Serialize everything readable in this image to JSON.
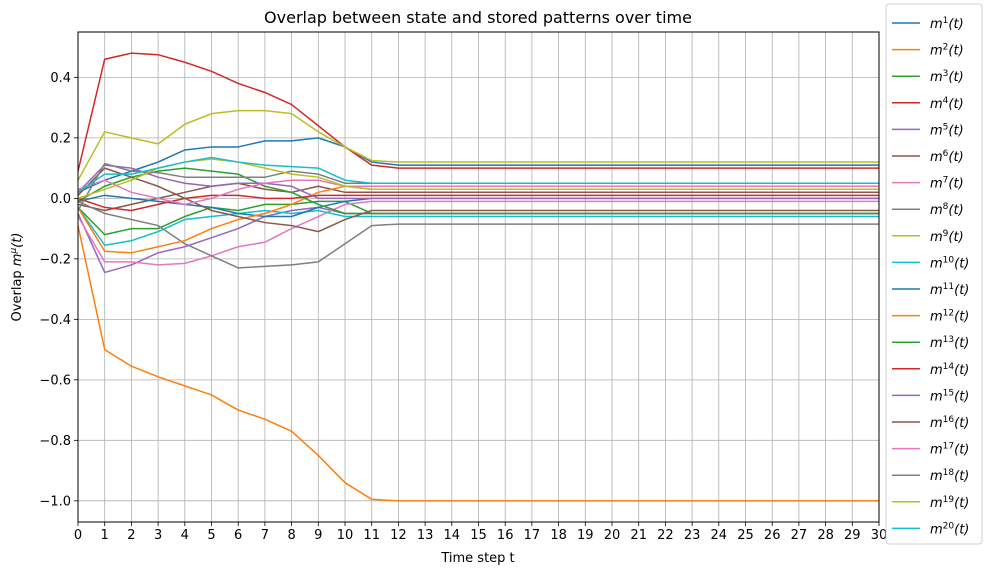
{
  "chart_data": {
    "type": "line",
    "title": "Overlap between state and stored patterns over time",
    "xlabel": "Time step t",
    "ylabel_prefix": "Overlap ",
    "ylabel_symbol": "m",
    "ylabel_sup": "μ",
    "ylabel_suffix": "(t)",
    "xlim": [
      0,
      30
    ],
    "ylim": [
      -1.07,
      0.55
    ],
    "xticks": [
      0,
      1,
      2,
      3,
      4,
      5,
      6,
      7,
      8,
      9,
      10,
      11,
      12,
      13,
      14,
      15,
      16,
      17,
      18,
      19,
      20,
      21,
      22,
      23,
      24,
      25,
      26,
      27,
      28,
      29,
      30
    ],
    "yticks": [
      -1.0,
      -0.8,
      -0.6,
      -0.4,
      -0.2,
      0.0,
      0.2,
      0.4
    ],
    "ytick_labels": [
      "−1.0",
      "−0.8",
      "−0.6",
      "−0.4",
      "−0.2",
      "0.0",
      "0.2",
      "0.4"
    ],
    "grid": true,
    "legend_placement": "outside-right",
    "x": [
      0,
      1,
      2,
      3,
      4,
      5,
      6,
      7,
      8,
      9,
      10,
      11,
      12,
      13,
      14,
      15,
      16,
      17,
      18,
      19,
      20,
      21,
      22,
      23,
      24,
      25,
      26,
      27,
      28,
      29,
      30
    ],
    "series": [
      {
        "name": "m",
        "sup": "1",
        "suffix": "(t)",
        "color": "#1f77b4",
        "values": [
          0.02,
          0.06,
          0.09,
          0.12,
          0.16,
          0.17,
          0.17,
          0.19,
          0.19,
          0.2,
          0.17,
          0.12,
          0.11,
          0.11,
          0.11,
          0.11,
          0.11,
          0.11,
          0.11,
          0.11,
          0.11,
          0.11,
          0.11,
          0.11,
          0.11,
          0.11,
          0.11,
          0.11,
          0.11,
          0.11,
          0.11
        ]
      },
      {
        "name": "m",
        "sup": "2",
        "suffix": "(t)",
        "color": "#ff7f0e",
        "values": [
          -0.09,
          -0.5,
          -0.555,
          -0.59,
          -0.62,
          -0.65,
          -0.7,
          -0.73,
          -0.77,
          -0.85,
          -0.94,
          -0.995,
          -1.0,
          -1.0,
          -1.0,
          -1.0,
          -1.0,
          -1.0,
          -1.0,
          -1.0,
          -1.0,
          -1.0,
          -1.0,
          -1.0,
          -1.0,
          -1.0,
          -1.0,
          -1.0,
          -1.0,
          -1.0,
          -1.0
        ]
      },
      {
        "name": "m",
        "sup": "3",
        "suffix": "(t)",
        "color": "#2ca02c",
        "values": [
          -0.03,
          -0.12,
          -0.1,
          -0.1,
          -0.06,
          -0.03,
          -0.04,
          -0.02,
          -0.02,
          -0.01,
          -0.01,
          -0.05,
          -0.05,
          -0.05,
          -0.05,
          -0.05,
          -0.05,
          -0.05,
          -0.05,
          -0.05,
          -0.05,
          -0.05,
          -0.05,
          -0.05,
          -0.05,
          -0.05,
          -0.05,
          -0.05,
          -0.05,
          -0.05,
          -0.05
        ]
      },
      {
        "name": "m",
        "sup": "4",
        "suffix": "(t)",
        "color": "#d62728",
        "values": [
          0.09,
          0.46,
          0.48,
          0.475,
          0.45,
          0.42,
          0.38,
          0.35,
          0.31,
          0.24,
          0.17,
          0.11,
          0.1,
          0.1,
          0.1,
          0.1,
          0.1,
          0.1,
          0.1,
          0.1,
          0.1,
          0.1,
          0.1,
          0.1,
          0.1,
          0.1,
          0.1,
          0.1,
          0.1,
          0.1,
          0.1
        ]
      },
      {
        "name": "m",
        "sup": "5",
        "suffix": "(t)",
        "color": "#9467bd",
        "values": [
          -0.05,
          -0.245,
          -0.22,
          -0.18,
          -0.16,
          -0.13,
          -0.1,
          -0.06,
          -0.04,
          -0.03,
          -0.05,
          -0.05,
          -0.05,
          -0.05,
          -0.05,
          -0.05,
          -0.05,
          -0.05,
          -0.05,
          -0.05,
          -0.05,
          -0.05,
          -0.05,
          -0.05,
          -0.05,
          -0.05,
          -0.05,
          -0.05,
          -0.05,
          -0.05,
          -0.05
        ]
      },
      {
        "name": "m",
        "sup": "6",
        "suffix": "(t)",
        "color": "#8c564b",
        "values": [
          -0.02,
          -0.04,
          -0.02,
          0.0,
          0.02,
          0.04,
          0.05,
          0.03,
          0.02,
          0.04,
          0.02,
          0.02,
          0.02,
          0.02,
          0.02,
          0.02,
          0.02,
          0.02,
          0.02,
          0.02,
          0.02,
          0.02,
          0.02,
          0.02,
          0.02,
          0.02,
          0.02,
          0.02,
          0.02,
          0.02,
          0.02
        ]
      },
      {
        "name": "m",
        "sup": "7",
        "suffix": "(t)",
        "color": "#e377c2",
        "values": [
          -0.06,
          -0.21,
          -0.21,
          -0.22,
          -0.215,
          -0.19,
          -0.16,
          -0.145,
          -0.1,
          -0.06,
          -0.02,
          -0.01,
          -0.01,
          -0.01,
          -0.01,
          -0.01,
          -0.01,
          -0.01,
          -0.01,
          -0.01,
          -0.01,
          -0.01,
          -0.01,
          -0.01,
          -0.01,
          -0.01,
          -0.01,
          -0.01,
          -0.01,
          -0.01,
          -0.01
        ]
      },
      {
        "name": "m",
        "sup": "8",
        "suffix": "(t)",
        "color": "#7f7f7f",
        "values": [
          -0.01,
          -0.05,
          -0.07,
          -0.09,
          -0.15,
          -0.19,
          -0.23,
          -0.225,
          -0.22,
          -0.21,
          -0.15,
          -0.09,
          -0.085,
          -0.085,
          -0.085,
          -0.085,
          -0.085,
          -0.085,
          -0.085,
          -0.085,
          -0.085,
          -0.085,
          -0.085,
          -0.085,
          -0.085,
          -0.085,
          -0.085,
          -0.085,
          -0.085,
          -0.085,
          -0.085
        ]
      },
      {
        "name": "m",
        "sup": "9",
        "suffix": "(t)",
        "color": "#bcbd22",
        "values": [
          0.06,
          0.22,
          0.2,
          0.18,
          0.245,
          0.28,
          0.29,
          0.29,
          0.28,
          0.22,
          0.17,
          0.125,
          0.12,
          0.12,
          0.12,
          0.12,
          0.12,
          0.12,
          0.12,
          0.12,
          0.12,
          0.12,
          0.12,
          0.12,
          0.12,
          0.12,
          0.12,
          0.12,
          0.12,
          0.12,
          0.12
        ]
      },
      {
        "name": "m",
        "sup": "10",
        "suffix": "(t)",
        "color": "#17becf",
        "values": [
          -0.03,
          -0.155,
          -0.14,
          -0.11,
          -0.07,
          -0.06,
          -0.05,
          -0.04,
          -0.05,
          -0.04,
          -0.06,
          -0.06,
          -0.06,
          -0.06,
          -0.06,
          -0.06,
          -0.06,
          -0.06,
          -0.06,
          -0.06,
          -0.06,
          -0.06,
          -0.06,
          -0.06,
          -0.06,
          -0.06,
          -0.06,
          -0.06,
          -0.06,
          -0.06,
          -0.06
        ]
      },
      {
        "name": "m",
        "sup": "11",
        "suffix": "(t)",
        "color": "#1f77b4",
        "values": [
          -0.01,
          0.01,
          0.0,
          -0.01,
          -0.02,
          -0.03,
          -0.05,
          -0.06,
          -0.06,
          -0.03,
          -0.01,
          0.0,
          0.0,
          0.0,
          0.0,
          0.0,
          0.0,
          0.0,
          0.0,
          0.0,
          0.0,
          0.0,
          0.0,
          0.0,
          0.0,
          0.0,
          0.0,
          0.0,
          0.0,
          0.0,
          0.0
        ]
      },
      {
        "name": "m",
        "sup": "12",
        "suffix": "(t)",
        "color": "#ff7f0e",
        "values": [
          -0.03,
          -0.175,
          -0.18,
          -0.16,
          -0.14,
          -0.1,
          -0.07,
          -0.05,
          -0.02,
          0.02,
          0.04,
          0.03,
          0.03,
          0.03,
          0.03,
          0.03,
          0.03,
          0.03,
          0.03,
          0.03,
          0.03,
          0.03,
          0.03,
          0.03,
          0.03,
          0.03,
          0.03,
          0.03,
          0.03,
          0.03,
          0.03
        ]
      },
      {
        "name": "m",
        "sup": "13",
        "suffix": "(t)",
        "color": "#2ca02c",
        "values": [
          -0.01,
          0.04,
          0.07,
          0.09,
          0.1,
          0.09,
          0.08,
          0.04,
          0.02,
          -0.02,
          -0.05,
          -0.05,
          -0.05,
          -0.05,
          -0.05,
          -0.05,
          -0.05,
          -0.05,
          -0.05,
          -0.05,
          -0.05,
          -0.05,
          -0.05,
          -0.05,
          -0.05,
          -0.05,
          -0.05,
          -0.05,
          -0.05,
          -0.05,
          -0.05
        ]
      },
      {
        "name": "m",
        "sup": "14",
        "suffix": "(t)",
        "color": "#d62728",
        "values": [
          0.0,
          -0.03,
          -0.04,
          -0.02,
          0.0,
          0.01,
          0.01,
          0.0,
          0.0,
          0.01,
          0.01,
          0.01,
          0.01,
          0.01,
          0.01,
          0.01,
          0.01,
          0.01,
          0.01,
          0.01,
          0.01,
          0.01,
          0.01,
          0.01,
          0.01,
          0.01,
          0.01,
          0.01,
          0.01,
          0.01,
          0.01
        ]
      },
      {
        "name": "m",
        "sup": "15",
        "suffix": "(t)",
        "color": "#9467bd",
        "values": [
          0.02,
          0.11,
          0.1,
          0.07,
          0.05,
          0.04,
          0.05,
          0.05,
          0.04,
          0.0,
          0.0,
          0.0,
          0.0,
          0.0,
          0.0,
          0.0,
          0.0,
          0.0,
          0.0,
          0.0,
          0.0,
          0.0,
          0.0,
          0.0,
          0.0,
          0.0,
          0.0,
          0.0,
          0.0,
          0.0,
          0.0
        ]
      },
      {
        "name": "m",
        "sup": "16",
        "suffix": "(t)",
        "color": "#8c564b",
        "values": [
          0.01,
          0.1,
          0.07,
          0.04,
          0.0,
          -0.04,
          -0.06,
          -0.08,
          -0.09,
          -0.11,
          -0.07,
          -0.04,
          -0.04,
          -0.04,
          -0.04,
          -0.04,
          -0.04,
          -0.04,
          -0.04,
          -0.04,
          -0.04,
          -0.04,
          -0.04,
          -0.04,
          -0.04,
          -0.04,
          -0.04,
          -0.04,
          -0.04,
          -0.04,
          -0.04
        ]
      },
      {
        "name": "m",
        "sup": "17",
        "suffix": "(t)",
        "color": "#e377c2",
        "values": [
          0.03,
          0.06,
          0.02,
          0.0,
          -0.02,
          0.0,
          0.03,
          0.05,
          0.06,
          0.06,
          0.04,
          0.04,
          0.04,
          0.04,
          0.04,
          0.04,
          0.04,
          0.04,
          0.04,
          0.04,
          0.04,
          0.04,
          0.04,
          0.04,
          0.04,
          0.04,
          0.04,
          0.04,
          0.04,
          0.04,
          0.04
        ]
      },
      {
        "name": "m",
        "sup": "18",
        "suffix": "(t)",
        "color": "#7f7f7f",
        "values": [
          -0.04,
          0.115,
          0.09,
          0.085,
          0.07,
          0.07,
          0.07,
          0.07,
          0.09,
          0.08,
          0.05,
          0.05,
          0.05,
          0.05,
          0.05,
          0.05,
          0.05,
          0.05,
          0.05,
          0.05,
          0.05,
          0.05,
          0.05,
          0.05,
          0.05,
          0.05,
          0.05,
          0.05,
          0.05,
          0.05,
          0.05
        ]
      },
      {
        "name": "m",
        "sup": "19",
        "suffix": "(t)",
        "color": "#bcbd22",
        "values": [
          0.0,
          0.03,
          0.06,
          0.1,
          0.12,
          0.13,
          0.12,
          0.1,
          0.08,
          0.07,
          0.04,
          0.03,
          0.03,
          0.03,
          0.03,
          0.03,
          0.03,
          0.03,
          0.03,
          0.03,
          0.03,
          0.03,
          0.03,
          0.03,
          0.03,
          0.03,
          0.03,
          0.03,
          0.03,
          0.03,
          0.03
        ]
      },
      {
        "name": "m",
        "sup": "20",
        "suffix": "(t)",
        "color": "#17becf",
        "values": [
          0.02,
          0.08,
          0.08,
          0.1,
          0.12,
          0.135,
          0.12,
          0.11,
          0.105,
          0.1,
          0.06,
          0.05,
          0.05,
          0.05,
          0.05,
          0.05,
          0.05,
          0.05,
          0.05,
          0.05,
          0.05,
          0.05,
          0.05,
          0.05,
          0.05,
          0.05,
          0.05,
          0.05,
          0.05,
          0.05,
          0.05
        ]
      }
    ]
  }
}
